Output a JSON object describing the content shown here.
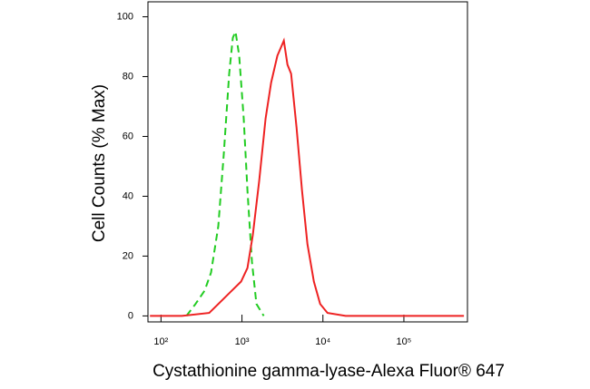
{
  "chart_data": {
    "type": "line",
    "x_label": "Cystathionine gamma-lyase-Alexa Fluor® 647",
    "y_label": "Cell Counts (% Max)",
    "xscale": "log",
    "xlim": [
      69,
      610000
    ],
    "ylim": [
      -2,
      105
    ],
    "xticks": [
      {
        "value": 100,
        "label": "10²"
      },
      {
        "value": 1000,
        "label": "10³"
      },
      {
        "value": 10000,
        "label": "10⁴"
      },
      {
        "value": 100000,
        "label": "10⁵"
      }
    ],
    "yticks": [
      0,
      20,
      40,
      60,
      80,
      100
    ],
    "series": [
      {
        "color": "#22cc22",
        "linestyle": "dashed",
        "x": [
          206,
          267,
          346,
          415,
          510,
          596,
          696,
          772,
          834,
          925,
          1050,
          1170,
          1330,
          1510,
          1860
        ],
        "values": [
          0,
          4,
          8.5,
          14.5,
          30,
          54,
          81,
          93,
          95,
          87,
          66,
          42,
          18,
          4,
          0
        ]
      },
      {
        "color": "#ee2222",
        "linestyle": "solid",
        "x": [
          73,
          181,
          394,
          581,
          752,
          975,
          1170,
          1360,
          1630,
          1960,
          2290,
          2740,
          3290,
          3650,
          4040,
          4720,
          5520,
          6440,
          7730,
          9250,
          11400,
          19100,
          552000
        ],
        "values": [
          0,
          0,
          1,
          5.5,
          8.5,
          11.5,
          16,
          27,
          45,
          66,
          78,
          87,
          92,
          84,
          81,
          63,
          42,
          24,
          11.5,
          4,
          1,
          0,
          0
        ]
      }
    ]
  }
}
